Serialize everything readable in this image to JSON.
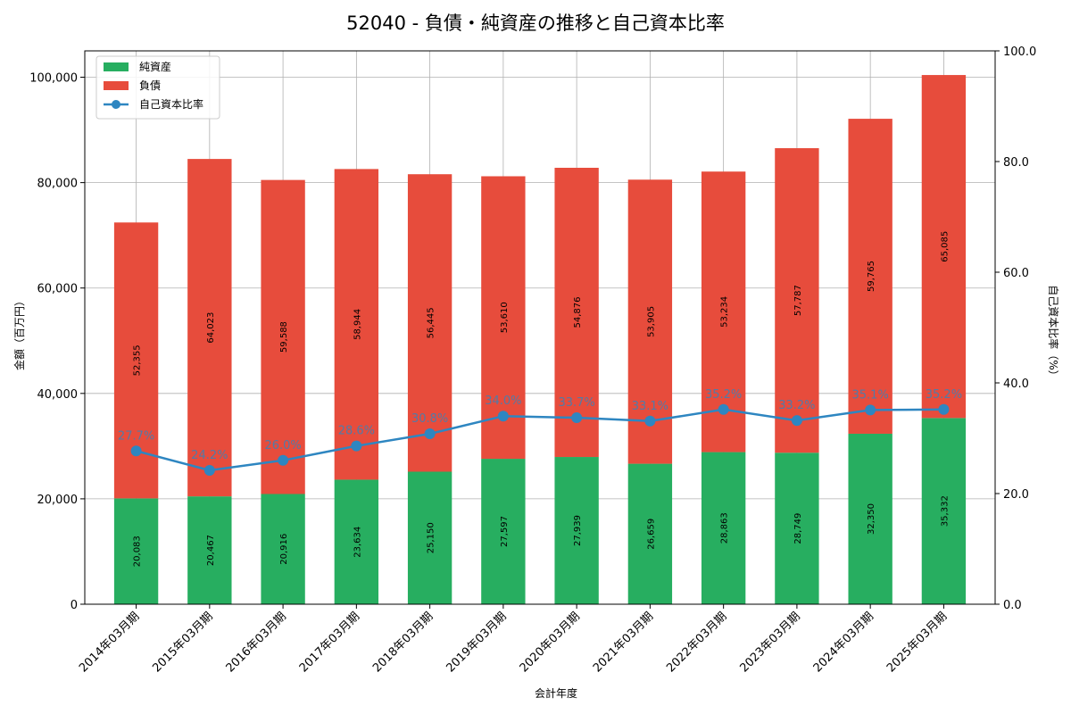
{
  "chart_data": {
    "type": "bar",
    "stacked": true,
    "title": "52040 - 負債・純資産の推移と自己資本比率",
    "xlabel": "会計年度",
    "ylabel_left": "金額（百万円）",
    "ylabel_right": "自己資本比率（%）",
    "ylim_left": [
      0,
      105000
    ],
    "ylim_right": [
      0,
      100
    ],
    "grid": true,
    "legend_position": "top-left",
    "categories": [
      "2014年03月期",
      "2015年03月期",
      "2016年03月期",
      "2017年03月期",
      "2018年03月期",
      "2019年03月期",
      "2020年03月期",
      "2021年03月期",
      "2022年03月期",
      "2023年03月期",
      "2024年03月期",
      "2025年03月期"
    ],
    "series": [
      {
        "name": "純資産",
        "type": "bar",
        "axis": "left",
        "color": "#27ae60",
        "values": [
          20083,
          20467,
          20916,
          23634,
          25150,
          27597,
          27939,
          26659,
          28863,
          28749,
          32350,
          35332
        ],
        "labels": [
          "20,083",
          "20,467",
          "20,916",
          "23,634",
          "25,150",
          "27,597",
          "27,939",
          "26,659",
          "28,863",
          "28,749",
          "32,350",
          "35,332"
        ]
      },
      {
        "name": "負債",
        "type": "bar",
        "axis": "left",
        "color": "#e74c3c",
        "values": [
          52355,
          64023,
          59588,
          58944,
          56445,
          53610,
          54876,
          53905,
          53234,
          57787,
          59765,
          65085
        ],
        "labels": [
          "52,355",
          "64,023",
          "59,588",
          "58,944",
          "56,445",
          "53,610",
          "54,876",
          "53,905",
          "53,234",
          "57,787",
          "59,765",
          "65,085"
        ]
      },
      {
        "name": "自己資本比率",
        "type": "line",
        "axis": "right",
        "color": "#2e86c1",
        "values": [
          27.7,
          24.2,
          26.0,
          28.6,
          30.8,
          34.0,
          33.7,
          33.1,
          35.2,
          33.2,
          35.1,
          35.2
        ],
        "labels": [
          "27.7%",
          "24.2%",
          "26.0%",
          "28.6%",
          "30.8%",
          "34.0%",
          "33.7%",
          "33.1%",
          "35.2%",
          "33.2%",
          "35.1%",
          "35.2%"
        ]
      }
    ],
    "left_ticks": [
      "0",
      "20,000",
      "40,000",
      "60,000",
      "80,000",
      "100,000"
    ],
    "left_tick_values": [
      0,
      20000,
      40000,
      60000,
      80000,
      100000
    ],
    "right_ticks": [
      "0.0",
      "20.0",
      "40.0",
      "60.0",
      "80.0",
      "100.0"
    ],
    "right_tick_values": [
      0,
      20,
      40,
      60,
      80,
      100
    ]
  }
}
